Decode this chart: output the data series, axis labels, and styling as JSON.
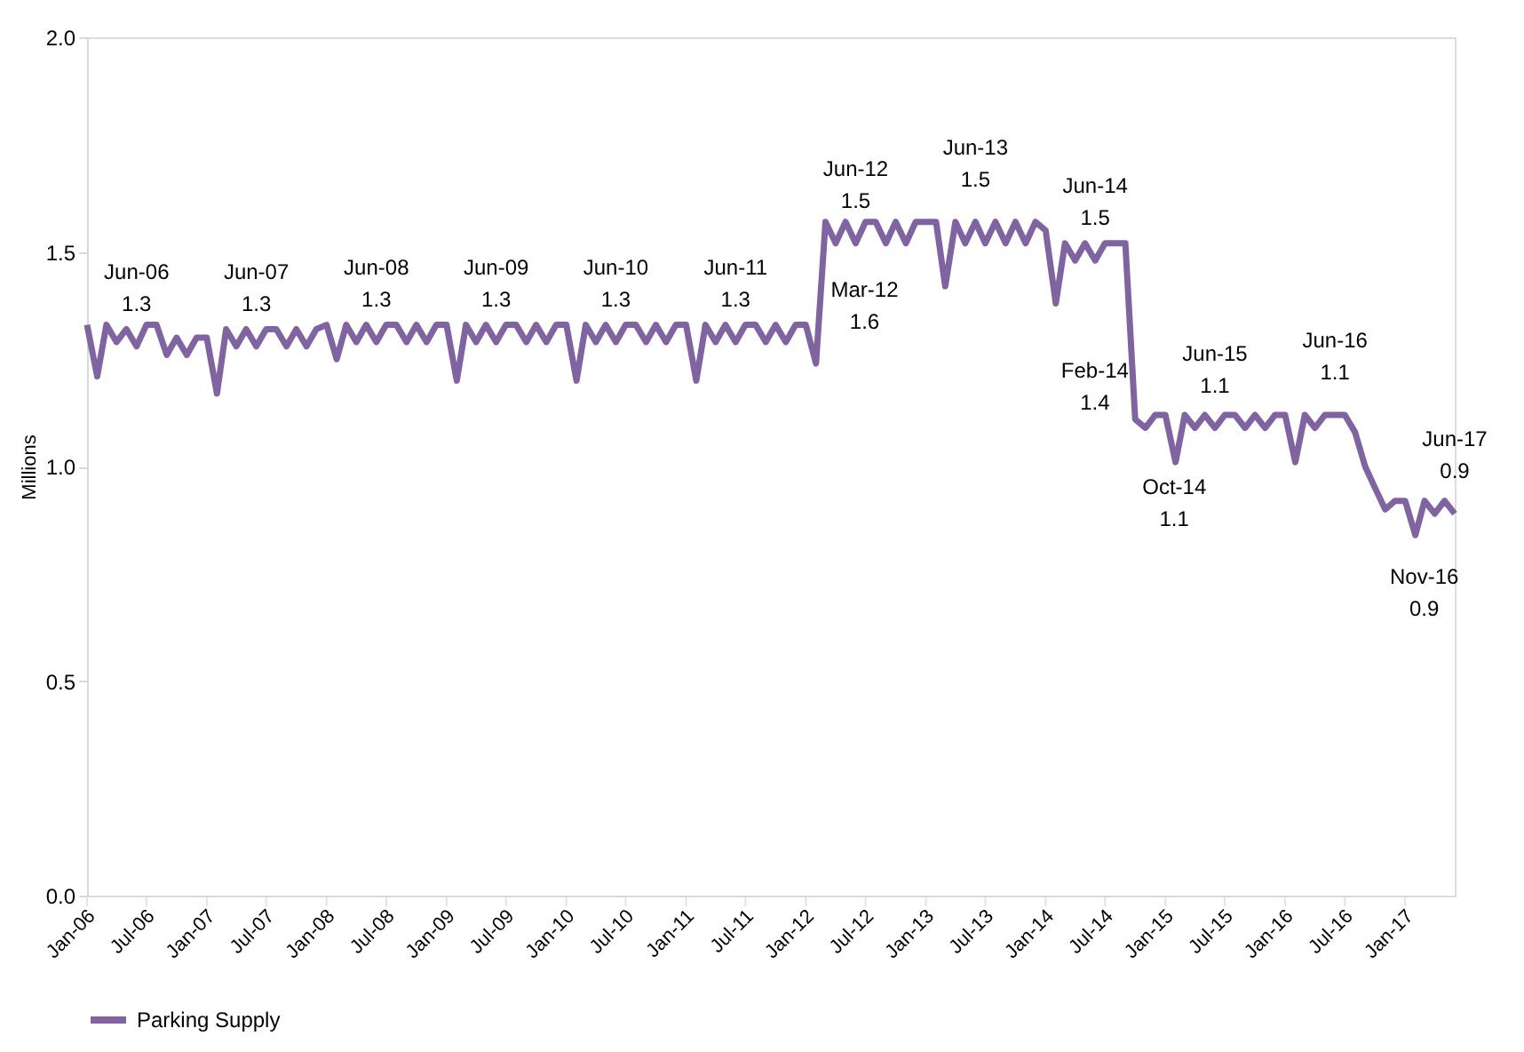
{
  "chart_data": {
    "type": "line",
    "ylabel": "Millions",
    "legend": "bottom",
    "grid": false,
    "marker": "none",
    "line_style": "solid",
    "x": [
      "2006-01",
      "2006-02",
      "2006-03",
      "2006-04",
      "2006-05",
      "2006-06",
      "2006-07",
      "2006-08",
      "2006-09",
      "2006-10",
      "2006-11",
      "2006-12",
      "2007-01",
      "2007-02",
      "2007-03",
      "2007-04",
      "2007-05",
      "2007-06",
      "2007-07",
      "2007-08",
      "2007-09",
      "2007-10",
      "2007-11",
      "2007-12",
      "2008-01",
      "2008-02",
      "2008-03",
      "2008-04",
      "2008-05",
      "2008-06",
      "2008-07",
      "2008-08",
      "2008-09",
      "2008-10",
      "2008-11",
      "2008-12",
      "2009-01",
      "2009-02",
      "2009-03",
      "2009-04",
      "2009-05",
      "2009-06",
      "2009-07",
      "2009-08",
      "2009-09",
      "2009-10",
      "2009-11",
      "2009-12",
      "2010-01",
      "2010-02",
      "2010-03",
      "2010-04",
      "2010-05",
      "2010-06",
      "2010-07",
      "2010-08",
      "2010-09",
      "2010-10",
      "2010-11",
      "2010-12",
      "2011-01",
      "2011-02",
      "2011-03",
      "2011-04",
      "2011-05",
      "2011-06",
      "2011-07",
      "2011-08",
      "2011-09",
      "2011-10",
      "2011-11",
      "2011-12",
      "2012-01",
      "2012-02",
      "2012-03",
      "2012-04",
      "2012-05",
      "2012-06",
      "2012-07",
      "2012-08",
      "2012-09",
      "2012-10",
      "2012-11",
      "2012-12",
      "2013-01",
      "2013-02",
      "2013-03",
      "2013-04",
      "2013-05",
      "2013-06",
      "2013-07",
      "2013-08",
      "2013-09",
      "2013-10",
      "2013-11",
      "2013-12",
      "2014-01",
      "2014-02",
      "2014-03",
      "2014-04",
      "2014-05",
      "2014-06",
      "2014-07",
      "2014-08",
      "2014-09",
      "2014-10",
      "2014-11",
      "2014-12",
      "2015-01",
      "2015-02",
      "2015-03",
      "2015-04",
      "2015-05",
      "2015-06",
      "2015-07",
      "2015-08",
      "2015-09",
      "2015-10",
      "2015-11",
      "2015-12",
      "2016-01",
      "2016-02",
      "2016-03",
      "2016-04",
      "2016-05",
      "2016-06",
      "2016-07",
      "2016-08",
      "2016-09",
      "2016-10",
      "2016-11",
      "2016-12",
      "2017-01",
      "2017-02",
      "2017-03",
      "2017-04",
      "2017-05",
      "2017-06"
    ],
    "series": [
      {
        "name": "Parking Supply",
        "color": "#8064a2",
        "values": [
          1.33,
          1.21,
          1.33,
          1.29,
          1.32,
          1.28,
          1.33,
          1.33,
          1.26,
          1.3,
          1.26,
          1.3,
          1.3,
          1.17,
          1.32,
          1.28,
          1.32,
          1.28,
          1.32,
          1.32,
          1.28,
          1.32,
          1.28,
          1.32,
          1.33,
          1.25,
          1.33,
          1.29,
          1.33,
          1.29,
          1.33,
          1.33,
          1.29,
          1.33,
          1.29,
          1.33,
          1.33,
          1.2,
          1.33,
          1.29,
          1.33,
          1.29,
          1.33,
          1.33,
          1.29,
          1.33,
          1.29,
          1.33,
          1.33,
          1.2,
          1.33,
          1.29,
          1.33,
          1.29,
          1.33,
          1.33,
          1.29,
          1.33,
          1.29,
          1.33,
          1.33,
          1.2,
          1.33,
          1.29,
          1.33,
          1.29,
          1.33,
          1.33,
          1.29,
          1.33,
          1.29,
          1.33,
          1.33,
          1.24,
          1.57,
          1.52,
          1.57,
          1.52,
          1.57,
          1.57,
          1.52,
          1.57,
          1.52,
          1.57,
          1.57,
          1.57,
          1.42,
          1.57,
          1.52,
          1.57,
          1.52,
          1.57,
          1.52,
          1.57,
          1.52,
          1.57,
          1.55,
          1.38,
          1.52,
          1.48,
          1.52,
          1.48,
          1.52,
          1.52,
          1.52,
          1.11,
          1.09,
          1.12,
          1.12,
          1.01,
          1.12,
          1.09,
          1.12,
          1.09,
          1.12,
          1.12,
          1.09,
          1.12,
          1.09,
          1.12,
          1.12,
          1.01,
          1.12,
          1.09,
          1.12,
          1.12,
          1.12,
          1.08,
          1.0,
          0.95,
          0.9,
          0.92,
          0.92,
          0.84,
          0.92,
          0.89,
          0.92,
          0.89
        ]
      }
    ],
    "xlim": [
      "2006-01",
      "2017-06"
    ],
    "xticks": [
      {
        "value": "2006-01",
        "label": "Jan-06"
      },
      {
        "value": "2006-07",
        "label": "Jul-06"
      },
      {
        "value": "2007-01",
        "label": "Jan-07"
      },
      {
        "value": "2007-07",
        "label": "Jul-07"
      },
      {
        "value": "2008-01",
        "label": "Jan-08"
      },
      {
        "value": "2008-07",
        "label": "Jul-08"
      },
      {
        "value": "2009-01",
        "label": "Jan-09"
      },
      {
        "value": "2009-07",
        "label": "Jul-09"
      },
      {
        "value": "2010-01",
        "label": "Jan-10"
      },
      {
        "value": "2010-07",
        "label": "Jul-10"
      },
      {
        "value": "2011-01",
        "label": "Jan-11"
      },
      {
        "value": "2011-07",
        "label": "Jul-11"
      },
      {
        "value": "2012-01",
        "label": "Jan-12"
      },
      {
        "value": "2012-07",
        "label": "Jul-12"
      },
      {
        "value": "2013-01",
        "label": "Jan-13"
      },
      {
        "value": "2013-07",
        "label": "Jul-13"
      },
      {
        "value": "2014-01",
        "label": "Jan-14"
      },
      {
        "value": "2014-07",
        "label": "Jul-14"
      },
      {
        "value": "2015-01",
        "label": "Jan-15"
      },
      {
        "value": "2015-07",
        "label": "Jul-15"
      },
      {
        "value": "2016-01",
        "label": "Jan-16"
      },
      {
        "value": "2016-07",
        "label": "Jul-16"
      },
      {
        "value": "2017-01",
        "label": "Jan-17"
      }
    ],
    "ylim": [
      0,
      2.0
    ],
    "yticks": [
      {
        "value": 0,
        "label": "0.0"
      },
      {
        "value": 0.5,
        "label": "0.5"
      },
      {
        "value": 1.0,
        "label": "1.0"
      },
      {
        "value": 1.5,
        "label": "1.5"
      },
      {
        "value": 2.0,
        "label": "2.0"
      }
    ],
    "annotations": [
      {
        "text": "Jun-06\n1.3",
        "x": "2006-06",
        "y": 1.28
      },
      {
        "text": "Jun-07\n1.3",
        "x": "2007-06",
        "y": 1.28
      },
      {
        "text": "Jun-08\n1.3",
        "x": "2008-06",
        "y": 1.29
      },
      {
        "text": "Jun-09\n1.3",
        "x": "2009-06",
        "y": 1.29
      },
      {
        "text": "Jun-10\n1.3",
        "x": "2010-06",
        "y": 1.29
      },
      {
        "text": "Jun-11\n1.3",
        "x": "2011-06",
        "y": 1.29
      },
      {
        "text": "Jun-12\n1.5",
        "x": "2012-06",
        "y": 1.52
      },
      {
        "text": "Mar-12\n1.6",
        "x": "2012-03",
        "y": 1.57
      },
      {
        "text": "Jun-13\n1.5",
        "x": "2013-06",
        "y": 1.57
      },
      {
        "text": "Jun-14\n1.5",
        "x": "2014-06",
        "y": 1.48
      },
      {
        "text": "Feb-14\n1.4",
        "x": "2014-02",
        "y": 1.38
      },
      {
        "text": "Oct-14\n1.1",
        "x": "2014-10",
        "y": 1.11
      },
      {
        "text": "Jun-15\n1.1",
        "x": "2015-06",
        "y": 1.09
      },
      {
        "text": "Jun-16\n1.1",
        "x": "2016-06",
        "y": 1.12
      },
      {
        "text": "Nov-16\n0.9",
        "x": "2016-11",
        "y": 0.9
      },
      {
        "text": "Jun-17\n0.9",
        "x": "2017-06",
        "y": 0.89
      }
    ]
  }
}
